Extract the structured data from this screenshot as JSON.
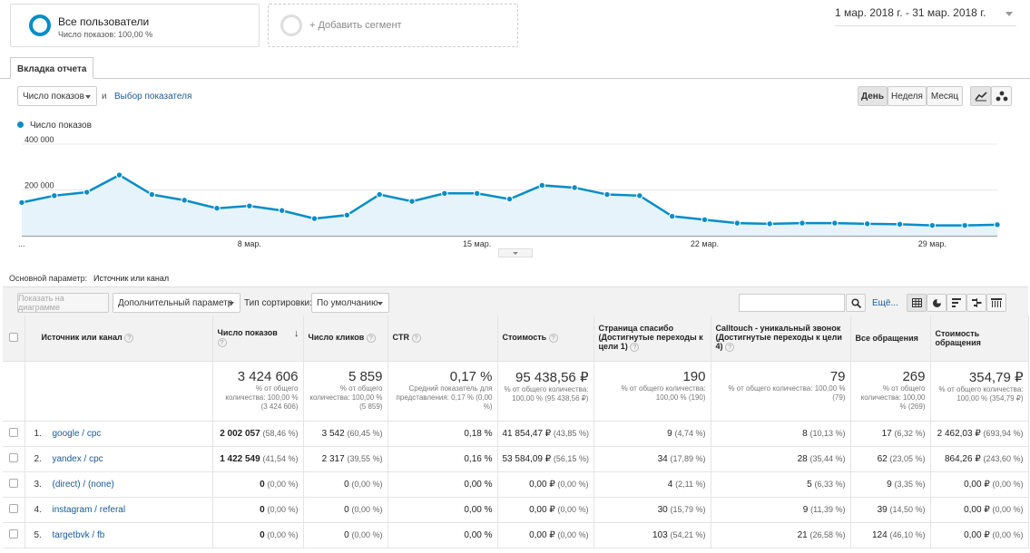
{
  "segments": {
    "active": {
      "title": "Все пользователи",
      "subtitle": "Число показов: 100,00 %"
    },
    "add_label": "+ Добавить сегмент"
  },
  "date_range": "1 мар. 2018 г. - 31 мар. 2018 г.",
  "report_tab": "Вкладка отчета",
  "metric_selector": {
    "value": "Число показов",
    "and": "и",
    "choose": "Выбор показателя"
  },
  "period_buttons": [
    "День",
    "Неделя",
    "Месяц"
  ],
  "chart_data": {
    "type": "area",
    "series": [
      {
        "name": "Число показов",
        "values": [
          145000,
          175000,
          190000,
          265000,
          180000,
          155000,
          120000,
          130000,
          110000,
          75000,
          90000,
          180000,
          150000,
          185000,
          185000,
          160000,
          220000,
          210000,
          180000,
          175000,
          85000,
          70000,
          55000,
          52000,
          55000,
          55000,
          52000,
          50000,
          45000,
          45000,
          48000
        ]
      }
    ],
    "x_ticks": [
      {
        "day": 8,
        "label": "8 мар."
      },
      {
        "day": 15,
        "label": "15 мар."
      },
      {
        "day": 22,
        "label": "22 мар."
      },
      {
        "day": 29,
        "label": "29 мар."
      }
    ],
    "x_start_label": "...",
    "y_ticks": [
      {
        "value": 200000,
        "label": "200 000"
      },
      {
        "value": 400000,
        "label": "400 000"
      }
    ],
    "ylim": [
      0,
      400000
    ],
    "xlim": [
      1,
      31
    ],
    "colors": {
      "line": "#058dc7",
      "fill": "#e6f3fa"
    }
  },
  "primary_dimension": {
    "label": "Основной параметр:",
    "value": "Источник или канал"
  },
  "toolbar": {
    "plot_rows": "Показать на диаграмме",
    "secondary_dimension": "Дополнительный параметр",
    "sort_type_label": "Тип сортировки:",
    "sort_type_value": "По умолчанию",
    "more": "Ещё..."
  },
  "table": {
    "headers": [
      "Источник или канал",
      "Число показов",
      "Число кликов",
      "CTR",
      "Стоимость",
      "Страница спасибо (Достигнутые переходы к цели 1)",
      "Calltouch - уникальный звонок (Достигнутые переходы к цели 4)",
      "Все обращения",
      "Стоимость обращения"
    ],
    "totals": [
      {
        "value": "3 424 606",
        "sub": "% от общего количества: 100,00 % (3 424 606)"
      },
      {
        "value": "5 859",
        "sub": "% от общего количества: 100,00 % (5 859)"
      },
      {
        "value": "0,17 %",
        "sub": "Средний показатель для представления: 0,17 % (0,00 %)"
      },
      {
        "value": "95 438,56 ₽",
        "sub": "% от общего количества: 100,00 % (95 438,56 ₽)"
      },
      {
        "value": "190",
        "sub": "% от общего количества: 100,00 % (190)"
      },
      {
        "value": "79",
        "sub": "% от общего количества: 100,00 % (79)"
      },
      {
        "value": "269",
        "sub": "% от общего количества: 100,00 % (269)"
      },
      {
        "value": "354,79 ₽",
        "sub": "% от общего количества: 100,00 % (354,79 ₽)"
      }
    ],
    "rows": [
      {
        "index": "1.",
        "source": "google / cpc",
        "cells": [
          [
            "2 002 057",
            "(58,46 %)"
          ],
          [
            "3 542",
            "(60,45 %)"
          ],
          [
            "0,18 %",
            ""
          ],
          [
            "41 854,47 ₽",
            "(43,85 %)"
          ],
          [
            "9",
            "(4,74 %)"
          ],
          [
            "8",
            "(10,13 %)"
          ],
          [
            "17",
            "(6,32 %)"
          ],
          [
            "2 462,03 ₽",
            "(693,94 %)"
          ]
        ]
      },
      {
        "index": "2.",
        "source": "yandex / cpc",
        "cells": [
          [
            "1 422 549",
            "(41,54 %)"
          ],
          [
            "2 317",
            "(39,55 %)"
          ],
          [
            "0,16 %",
            ""
          ],
          [
            "53 584,09 ₽",
            "(56,15 %)"
          ],
          [
            "34",
            "(17,89 %)"
          ],
          [
            "28",
            "(35,44 %)"
          ],
          [
            "62",
            "(23,05 %)"
          ],
          [
            "864,26 ₽",
            "(243,60 %)"
          ]
        ]
      },
      {
        "index": "3.",
        "source": "(direct) / (none)",
        "cells": [
          [
            "0",
            "(0,00 %)"
          ],
          [
            "0",
            "(0,00 %)"
          ],
          [
            "0,00 %",
            ""
          ],
          [
            "0,00 ₽",
            "(0,00 %)"
          ],
          [
            "4",
            "(2,11 %)"
          ],
          [
            "5",
            "(6,33 %)"
          ],
          [
            "9",
            "(3,35 %)"
          ],
          [
            "0,00 ₽",
            "(0,00 %)"
          ]
        ]
      },
      {
        "index": "4.",
        "source": "instagram / referal",
        "cells": [
          [
            "0",
            "(0,00 %)"
          ],
          [
            "0",
            "(0,00 %)"
          ],
          [
            "0,00 %",
            ""
          ],
          [
            "0,00 ₽",
            "(0,00 %)"
          ],
          [
            "30",
            "(15,79 %)"
          ],
          [
            "9",
            "(11,39 %)"
          ],
          [
            "39",
            "(14,50 %)"
          ],
          [
            "0,00 ₽",
            "(0,00 %)"
          ]
        ]
      },
      {
        "index": "5.",
        "source": "targetbvk / fb",
        "cells": [
          [
            "0",
            "(0,00 %)"
          ],
          [
            "0",
            "(0,00 %)"
          ],
          [
            "0,00 %",
            ""
          ],
          [
            "0,00 ₽",
            "(0,00 %)"
          ],
          [
            "103",
            "(54,21 %)"
          ],
          [
            "21",
            "(26,58 %)"
          ],
          [
            "124",
            "(46,10 %)"
          ],
          [
            "0,00 ₽",
            "(0,00 %)"
          ]
        ]
      }
    ]
  }
}
